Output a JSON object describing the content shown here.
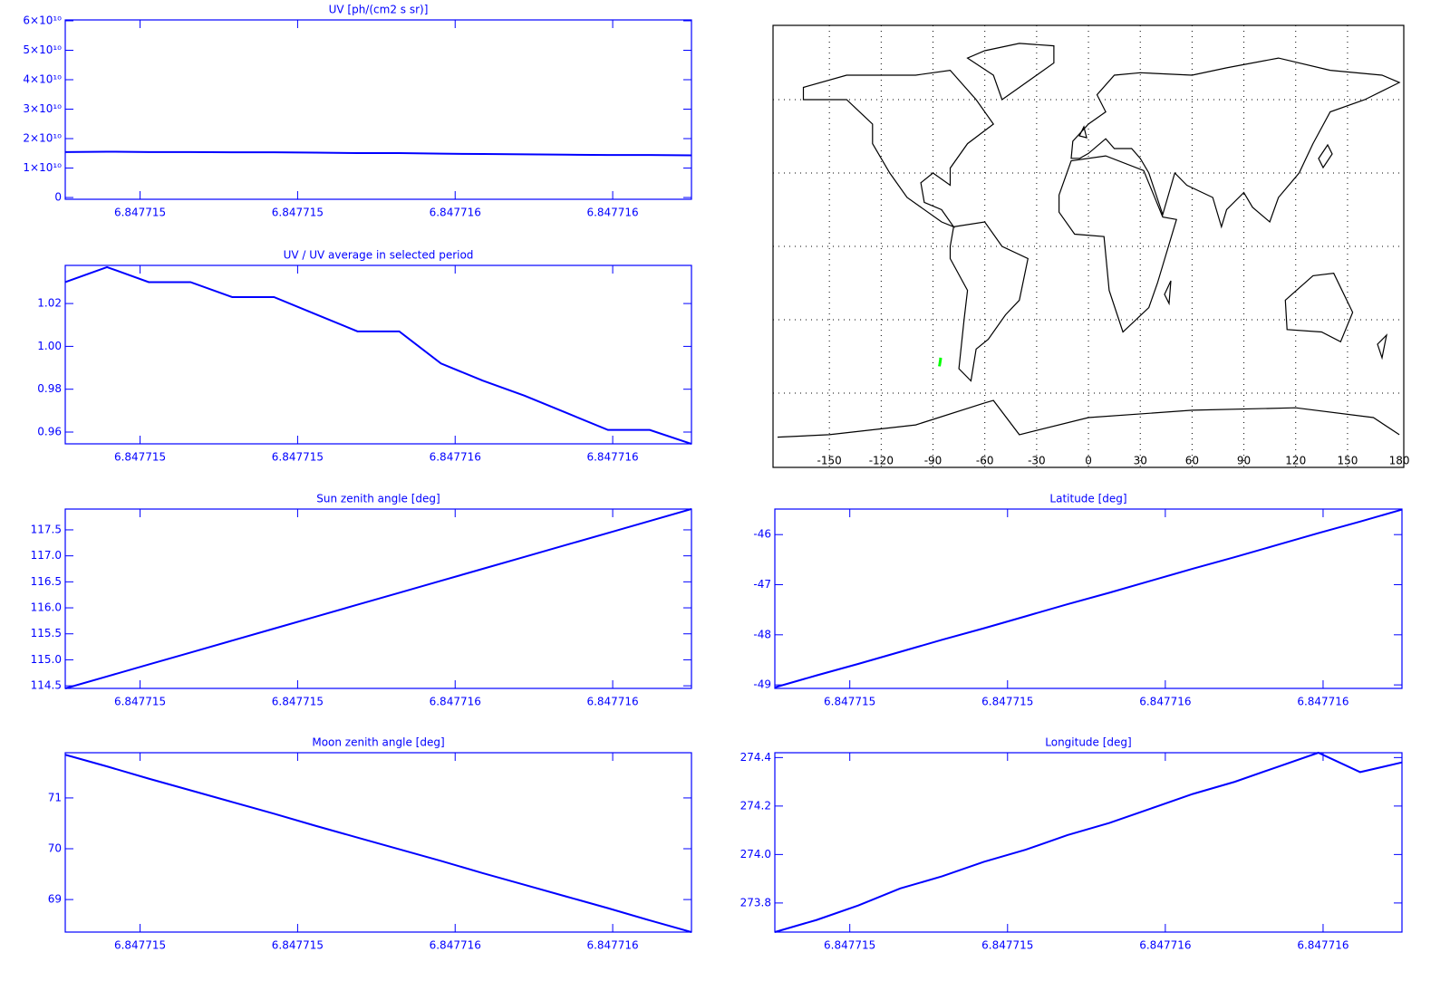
{
  "chart_data": [
    {
      "type": "line",
      "title": "UV [ph/(cm2 s sr)]",
      "color": "#0000ff",
      "x": [
        6.84771481,
        6.847714916,
        6.847715022,
        6.847715128,
        6.847715234,
        6.84771534,
        6.847715446,
        6.847715552,
        6.847715658,
        6.847715764,
        6.84771587,
        6.847715976,
        6.847716082,
        6.847716188,
        6.847716294,
        6.8477164
      ],
      "values": [
        15450000000,
        15550000000,
        15450000000,
        15450000000,
        15350000000,
        15350000000,
        15230000000,
        15100000000,
        15100000000,
        14880000000,
        14760000000,
        14660000000,
        14540000000,
        14420000000,
        14420000000,
        14320000000
      ],
      "xlim": [
        6.84771481,
        6.8477164
      ],
      "ylim": [
        -600000000,
        60300000000
      ],
      "xticks": [
        6.847715,
        {
          "value": 6.8477154,
          "label": "6.847715"
        },
        {
          "value": 6.8477158,
          "label": "6.847716"
        },
        {
          "value": 6.8477162,
          "label": "6.847716"
        }
      ],
      "yticks": [
        0,
        {
          "value": 10000000000,
          "label": "1×10¹⁰"
        },
        {
          "value": 20000000000,
          "label": "2×10¹⁰"
        },
        {
          "value": 30000000000,
          "label": "3×10¹⁰"
        },
        {
          "value": 40000000000,
          "label": "4×10¹⁰"
        },
        {
          "value": 50000000000,
          "label": "5×10¹⁰"
        },
        {
          "value": 60000000000,
          "label": "6×10¹⁰"
        }
      ]
    },
    {
      "type": "line",
      "title": "UV / UV average in selected period",
      "color": "#0000ff",
      "x": [
        6.84771481,
        6.847714916,
        6.847715022,
        6.847715128,
        6.847715234,
        6.84771534,
        6.847715446,
        6.847715552,
        6.847715658,
        6.847715764,
        6.84771587,
        6.847715976,
        6.847716082,
        6.847716188,
        6.847716294,
        6.8477164
      ],
      "values": [
        1.03,
        1.037,
        1.03,
        1.03,
        1.023,
        1.023,
        1.015,
        1.007,
        1.007,
        0.992,
        0.984,
        0.977,
        0.969,
        0.961,
        0.961,
        0.9545
      ],
      "xlim": [
        6.84771481,
        6.8477164
      ],
      "ylim": [
        0.9545,
        1.0378
      ],
      "xticks": [
        6.847715,
        {
          "value": 6.8477154,
          "label": "6.847715"
        },
        {
          "value": 6.8477158,
          "label": "6.847716"
        },
        {
          "value": 6.8477162,
          "label": "6.847716"
        }
      ],
      "yticks": [
        0.96,
        0.98,
        {
          "value": 1,
          "label": "1.00"
        },
        1.02
      ]
    },
    {
      "type": "line",
      "title": "Sun zenith angle [deg]",
      "color": "#0000ff",
      "x": [
        6.84771481,
        6.847714916,
        6.847715022,
        6.847715128,
        6.847715234,
        6.84771534,
        6.847715446,
        6.847715552,
        6.847715658,
        6.847715764,
        6.84771587,
        6.847715976,
        6.847716082,
        6.847716188,
        6.847716294,
        6.8477164
      ],
      "values": [
        114.45,
        114.68,
        114.91,
        115.14,
        115.37,
        115.6,
        115.83,
        116.06,
        116.29,
        116.52,
        116.75,
        116.98,
        117.21,
        117.44,
        117.67,
        117.9
      ],
      "xlim": [
        6.84771481,
        6.8477164
      ],
      "ylim": [
        114.45,
        117.9
      ],
      "xticks": [
        6.847715,
        {
          "value": 6.8477154,
          "label": "6.847715"
        },
        {
          "value": 6.8477158,
          "label": "6.847716"
        },
        {
          "value": 6.8477162,
          "label": "6.847716"
        }
      ],
      "yticks": [
        114.5,
        {
          "value": 115,
          "label": "115.0"
        },
        115.5,
        {
          "value": 116,
          "label": "116.0"
        },
        116.5,
        {
          "value": 117,
          "label": "117.0"
        },
        117.5
      ]
    },
    {
      "type": "line",
      "title": "Moon zenith angle [deg]",
      "color": "#0000ff",
      "x": [
        6.84771481,
        6.847714916,
        6.847715022,
        6.847715128,
        6.847715234,
        6.84771534,
        6.847715446,
        6.847715552,
        6.847715658,
        6.847715764,
        6.84771587,
        6.847715976,
        6.847716082,
        6.847716188,
        6.847716294,
        6.8477164
      ],
      "values": [
        71.85,
        71.62,
        71.38,
        71.15,
        70.92,
        70.69,
        70.45,
        70.22,
        69.99,
        69.76,
        69.52,
        69.29,
        69.06,
        68.83,
        68.59,
        68.36
      ],
      "xlim": [
        6.84771481,
        6.8477164
      ],
      "ylim": [
        68.36,
        71.89
      ],
      "xticks": [
        6.847715,
        {
          "value": 6.8477154,
          "label": "6.847715"
        },
        {
          "value": 6.8477158,
          "label": "6.847716"
        },
        {
          "value": 6.8477162,
          "label": "6.847716"
        }
      ],
      "yticks": [
        69,
        70,
        71
      ]
    },
    {
      "type": "map",
      "color": "#000000",
      "track_color": "#00ff00",
      "xlim": [
        -180,
        180
      ],
      "ylim": [
        -90,
        90
      ],
      "xticks": [
        -150,
        -120,
        -90,
        -60,
        -30,
        0,
        30,
        60,
        90,
        120,
        150,
        180
      ],
      "ygrid": [
        -60,
        -30,
        0,
        30,
        60
      ]
    },
    {
      "type": "line",
      "title": "Latitude [deg]",
      "color": "#0000ff",
      "x": [
        6.84771481,
        6.847714916,
        6.847715022,
        6.847715128,
        6.847715234,
        6.84771534,
        6.847715446,
        6.847715552,
        6.847715658,
        6.847715764,
        6.84771587,
        6.847715976,
        6.847716082,
        6.847716188,
        6.847716294,
        6.8477164
      ],
      "values": [
        -49.05,
        -48.81,
        -48.58,
        -48.34,
        -48.1,
        -47.87,
        -47.63,
        -47.39,
        -47.16,
        -46.92,
        -46.68,
        -46.45,
        -46.21,
        -45.97,
        -45.74,
        -45.5
      ],
      "xlim": [
        6.84771481,
        6.8477164
      ],
      "ylim": [
        -49.07,
        -45.49
      ],
      "xticks": [
        6.847715,
        {
          "value": 6.8477154,
          "label": "6.847715"
        },
        {
          "value": 6.8477158,
          "label": "6.847716"
        },
        {
          "value": 6.8477162,
          "label": "6.847716"
        }
      ],
      "yticks": [
        -49,
        -48,
        -47,
        -46
      ]
    },
    {
      "type": "line",
      "title": "Longitude [deg]",
      "color": "#0000ff",
      "x": [
        6.84771481,
        6.847714916,
        6.847715022,
        6.847715128,
        6.847715234,
        6.84771534,
        6.847715446,
        6.847715552,
        6.847715658,
        6.847715764,
        6.84771587,
        6.847715976,
        6.847716082,
        6.847716188,
        6.847716294,
        6.8477164
      ],
      "values": [
        273.68,
        273.73,
        273.79,
        273.86,
        273.91,
        273.97,
        274.02,
        274.08,
        274.13,
        274.19,
        274.25,
        274.3,
        274.36,
        274.42,
        274.34,
        274.38
      ],
      "xlim": [
        6.84771481,
        6.8477164
      ],
      "ylim": [
        273.68,
        274.42
      ],
      "xticks": [
        6.847715,
        {
          "value": 6.8477154,
          "label": "6.847715"
        },
        {
          "value": 6.8477158,
          "label": "6.847716"
        },
        {
          "value": 6.8477162,
          "label": "6.847716"
        }
      ],
      "yticks": [
        273.8,
        {
          "value": 274,
          "label": "274.0"
        },
        274.2,
        274.4
      ]
    }
  ]
}
